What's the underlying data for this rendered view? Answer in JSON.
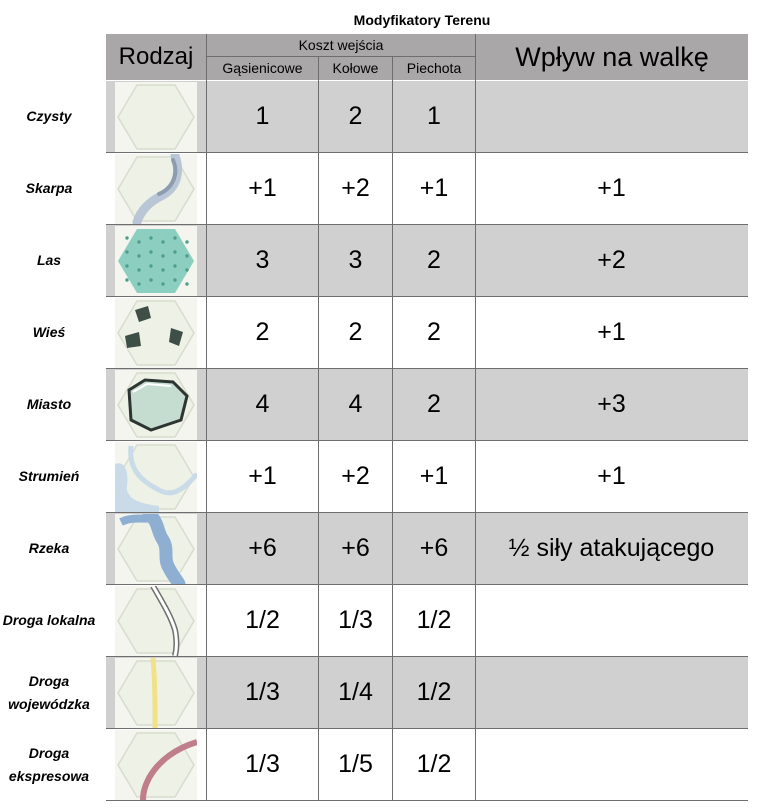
{
  "title": "Modyfikatory Terenu",
  "header": {
    "rodzaj": "Rodzaj",
    "koszt_wejscia": "Koszt wejścia",
    "cols": [
      "Gąsienicowe",
      "Kołowe",
      "Piechota"
    ],
    "wplyw": "Wpływ na walkę"
  },
  "rows": [
    {
      "name": "Czysty",
      "icon": "clear-terrain-icon",
      "g": "1",
      "k": "2",
      "p": "1",
      "w": ""
    },
    {
      "name": "Skarpa",
      "icon": "escarpment-icon",
      "g": "+1",
      "k": "+2",
      "p": "+1",
      "w": "+1"
    },
    {
      "name": "Las",
      "icon": "forest-icon",
      "g": "3",
      "k": "3",
      "p": "2",
      "w": "+2"
    },
    {
      "name": "Wieś",
      "icon": "village-icon",
      "g": "2",
      "k": "2",
      "p": "2",
      "w": "+1"
    },
    {
      "name": "Miasto",
      "icon": "city-icon",
      "g": "4",
      "k": "4",
      "p": "2",
      "w": "+3"
    },
    {
      "name": "Strumień",
      "icon": "stream-icon",
      "g": "+1",
      "k": "+2",
      "p": "+1",
      "w": "+1"
    },
    {
      "name": "Rzeka",
      "icon": "river-icon",
      "g": "+6",
      "k": "+6",
      "p": "+6",
      "w": "½ siły atakującego"
    },
    {
      "name": "Droga lokalna",
      "icon": "local-road-icon",
      "g": "1/2",
      "k": "1/3",
      "p": "1/2",
      "w": ""
    },
    {
      "name": "Droga wojewódzka",
      "icon": "regional-road-icon",
      "g": "1/3",
      "k": "1/4",
      "p": "1/2",
      "w": ""
    },
    {
      "name": "Droga ekspresowa",
      "icon": "expressway-icon",
      "g": "1/3",
      "k": "1/5",
      "p": "1/2",
      "w": ""
    }
  ],
  "colors": {
    "header_bg": "#a9a7a7",
    "shaded_row_bg": "#d0d0d0",
    "forest": "#8ccfc0",
    "city": "#c5ddd0",
    "stream": "#c9dbe8",
    "river": "#8eaed2",
    "regional_road": "#f1e28a",
    "expressway": "#c07d8a"
  }
}
